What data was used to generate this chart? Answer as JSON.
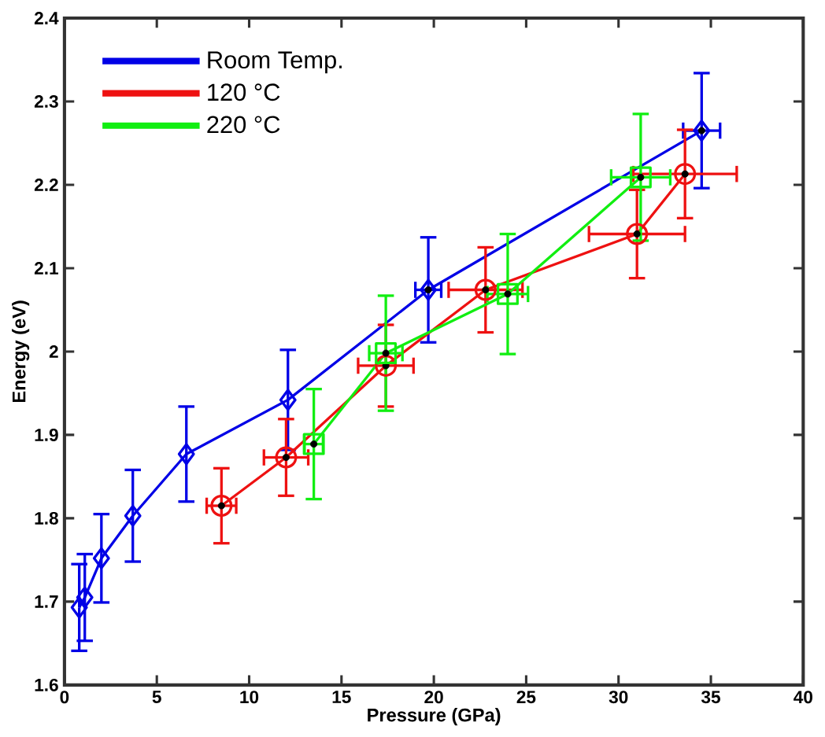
{
  "chart_data": {
    "type": "line",
    "xlabel": "Pressure (GPa)",
    "ylabel": "Energy (eV)",
    "xlim": [
      0,
      40
    ],
    "ylim": [
      1.6,
      2.4
    ],
    "xticks": [
      0,
      5,
      10,
      15,
      20,
      25,
      30,
      35,
      40
    ],
    "yticks": [
      {
        "value": 1.6,
        "label": "1.6"
      },
      {
        "value": 1.7,
        "label": "1.7"
      },
      {
        "value": 1.8,
        "label": "1.8"
      },
      {
        "value": 1.9,
        "label": "1.9"
      },
      2,
      {
        "value": 2.1,
        "label": "2.1"
      },
      {
        "value": 2.2,
        "label": "2.2"
      },
      {
        "value": 2.3,
        "label": "2.3"
      },
      {
        "value": 2.4,
        "label": "2.4"
      }
    ],
    "legend": "top left",
    "series": [
      {
        "name": "Room Temp.",
        "color": "#0000e6",
        "marker": "diamond",
        "x": [
          0.8,
          1.1,
          2.0,
          3.7,
          6.6,
          12.1,
          19.7,
          34.5
        ],
        "values": [
          1.693,
          1.705,
          1.752,
          1.803,
          1.877,
          1.942,
          2.074,
          2.265
        ],
        "errors": [
          0.052,
          0.052,
          0.053,
          0.055,
          0.057,
          0.06,
          0.063,
          0.069
        ],
        "xerrors": [
          null,
          null,
          null,
          null,
          null,
          null,
          0.7,
          1.0
        ]
      },
      {
        "name": "120 °C",
        "color": "#ee1111",
        "marker": "circle",
        "x": [
          8.5,
          12.0,
          17.4,
          22.8,
          31.0,
          33.6
        ],
        "values": [
          1.815,
          1.873,
          1.983,
          2.074,
          2.141,
          2.213
        ],
        "errors": [
          0.045,
          0.046,
          0.049,
          0.051,
          0.053,
          0.053
        ],
        "xerrors": [
          0.8,
          1.2,
          1.5,
          2.0,
          2.6,
          2.8
        ]
      },
      {
        "name": "220 °C",
        "color": "#11ee11",
        "marker": "square",
        "x": [
          13.5,
          17.4,
          24.0,
          31.2
        ],
        "values": [
          1.889,
          1.998,
          2.069,
          2.209
        ],
        "errors": [
          0.066,
          0.069,
          0.072,
          0.076
        ],
        "xerrors": [
          0.5,
          0.9,
          1.1,
          1.6
        ]
      }
    ]
  }
}
